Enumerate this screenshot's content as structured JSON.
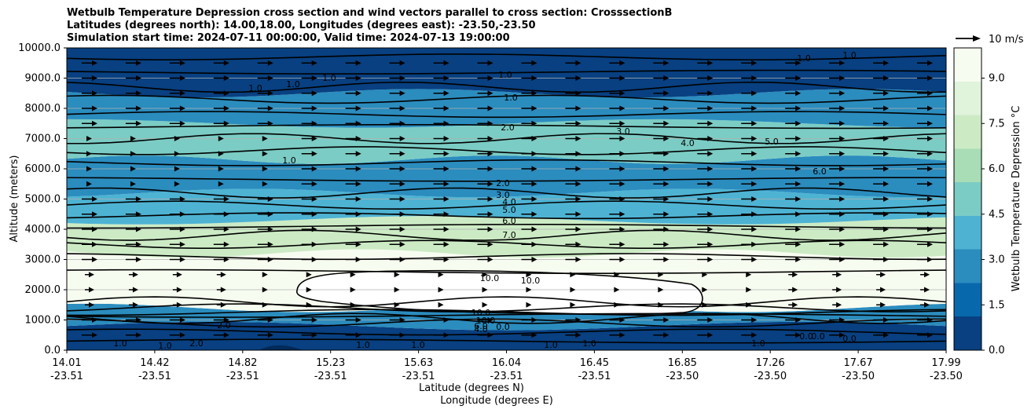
{
  "chart_data": {
    "type": "contour",
    "title_lines": [
      "Wetbulb Temperature Depression cross section and wind vectors parallel to cross section: CrosssectionB",
      "Latitudes (degrees north): 14.00,18.00, Longitudes (degrees east): -23.50,-23.50",
      "Simulation start time: 2024-07-11 00:00:00, Valid time: 2024-07-13 19:00:00"
    ],
    "ylabel": "Altitude (meters)",
    "xlabel": "Latitude (degrees N)",
    "xlabel2": "Longitude (degrees E)",
    "ylim": [
      0,
      10000
    ],
    "yticks": [
      "0.0",
      "1000.0",
      "2000.0",
      "3000.0",
      "4000.0",
      "5000.0",
      "6000.0",
      "7000.0",
      "8000.0",
      "9000.0",
      "10000.0"
    ],
    "xticks": [
      {
        "lat": "14.01",
        "lon": "-23.51"
      },
      {
        "lat": "14.42",
        "lon": "-23.51"
      },
      {
        "lat": "14.82",
        "lon": "-23.51"
      },
      {
        "lat": "15.23",
        "lon": "-23.51"
      },
      {
        "lat": "15.63",
        "lon": "-23.51"
      },
      {
        "lat": "16.04",
        "lon": "-23.51"
      },
      {
        "lat": "16.45",
        "lon": "-23.51"
      },
      {
        "lat": "16.85",
        "lon": "-23.50"
      },
      {
        "lat": "17.26",
        "lon": "-23.50"
      },
      {
        "lat": "17.67",
        "lon": "-23.50"
      },
      {
        "lat": "17.99",
        "lon": "-23.50"
      }
    ],
    "colorbar": {
      "label": "Wetbulb Temperature Depression °C",
      "min": 0,
      "max": 10,
      "ticks": [
        "0.0",
        "1.5",
        "3.0",
        "4.5",
        "6.0",
        "7.5",
        "9.0"
      ],
      "colors": [
        "#084081",
        "#0868ac",
        "#2b8cbe",
        "#4eb3d3",
        "#7bccc4",
        "#a8ddb5",
        "#ccebc5",
        "#e0f3db",
        "#f7fcf0"
      ]
    },
    "wind_key": "10 m/s",
    "layers": [
      {
        "alt_range": [
          0,
          800
        ],
        "value": 0.5
      },
      {
        "alt_range": [
          800,
          1400
        ],
        "value": 3.0
      },
      {
        "alt_range": [
          1400,
          3200
        ],
        "value": 9.0
      },
      {
        "alt_range": [
          3200,
          4300
        ],
        "value": 7.0
      },
      {
        "alt_range": [
          4300,
          5200
        ],
        "value": 4.0
      },
      {
        "alt_range": [
          5200,
          6300
        ],
        "value": 2.5
      },
      {
        "alt_range": [
          6300,
          7500
        ],
        "value": 4.5
      },
      {
        "alt_range": [
          7500,
          8500
        ],
        "value": 2.5
      },
      {
        "alt_range": [
          8500,
          10000
        ],
        "value": 1.0
      }
    ],
    "contour_labels": [
      "1.0",
      "1.0",
      "1.0",
      "1.0",
      "1.0",
      "1.0",
      "1.0",
      "1.0",
      "2.0",
      "3.0",
      "4.0",
      "5.0",
      "6.0",
      "2.0",
      "3.0",
      "4.0",
      "5.0",
      "6.0",
      "7.0",
      "10.0",
      "10.0",
      "10.0",
      "10.0",
      "6.0",
      "4.0",
      "2.0",
      "1.0",
      "1.0",
      "1.0",
      "1.0",
      "1.0",
      "1.0",
      "0.0",
      "0.0",
      "0.0",
      "0.0",
      "2.0",
      "1.0"
    ]
  }
}
